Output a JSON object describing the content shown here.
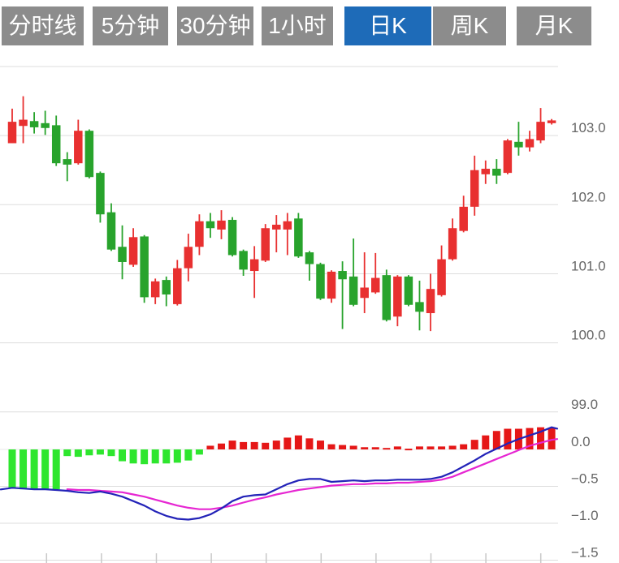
{
  "tabs": {
    "items": [
      {
        "label": "分时线",
        "active": false
      },
      {
        "label": "5分钟",
        "active": false
      },
      {
        "label": "30分钟",
        "active": false
      },
      {
        "label": "1小时",
        "active": false
      },
      {
        "label": "日K",
        "active": true
      },
      {
        "label": "周K",
        "active": false
      },
      {
        "label": "月K",
        "active": false
      }
    ]
  },
  "colors": {
    "bg": "#FFFFFF",
    "tab_bg": "#8C8C8C",
    "tab_active_bg": "#1E6BB8",
    "tab_text": "#FFFFFF",
    "candle_up": "#E83030",
    "candle_down": "#28A32C",
    "hist_pos": "#E51717",
    "hist_neg": "#2EE62E",
    "dif_line": "#2323B8",
    "dea_line": "#E626D2",
    "grid": "#DDDDDD",
    "tick": "#C8C8C8",
    "axis_text": "#666666"
  },
  "chart_data": {
    "type": "candlestick",
    "title": "",
    "panels": [
      "price",
      "macd"
    ],
    "price_axis": {
      "range": [
        99,
        104
      ],
      "unlabeled_top_gridline_value": 104,
      "ticks": [
        {
          "label": "103.0",
          "value": 103
        },
        {
          "label": "102.0",
          "value": 102
        },
        {
          "label": "101.0",
          "value": 101
        },
        {
          "label": "100.0",
          "value": 100
        },
        {
          "label": "99.0",
          "value": 99
        }
      ]
    },
    "candles": {
      "columns": [
        "open",
        "high",
        "low",
        "close"
      ],
      "up_means": "close >= open (red)",
      "ohlc": [
        [
          102.89,
          103.39,
          102.89,
          103.2
        ],
        [
          103.14,
          103.57,
          102.89,
          103.23
        ],
        [
          103.21,
          103.34,
          103.03,
          103.12
        ],
        [
          103.18,
          103.36,
          103.01,
          103.11
        ],
        [
          103.15,
          103.29,
          102.56,
          102.6
        ],
        [
          102.66,
          102.76,
          102.34,
          102.58
        ],
        [
          102.6,
          103.23,
          102.58,
          103.07
        ],
        [
          103.07,
          103.09,
          102.38,
          102.4
        ],
        [
          102.46,
          102.48,
          101.74,
          101.86
        ],
        [
          101.89,
          102.02,
          101.33,
          101.35
        ],
        [
          101.39,
          101.7,
          100.92,
          101.17
        ],
        [
          101.13,
          101.66,
          101.1,
          101.53
        ],
        [
          101.54,
          101.56,
          100.58,
          100.66
        ],
        [
          100.66,
          100.93,
          100.56,
          100.89
        ],
        [
          100.91,
          100.96,
          100.53,
          100.7
        ],
        [
          100.56,
          101.2,
          100.54,
          101.08
        ],
        [
          101.08,
          101.58,
          100.89,
          101.39
        ],
        [
          101.39,
          101.86,
          101.27,
          101.76
        ],
        [
          101.76,
          101.88,
          101.52,
          101.66
        ],
        [
          101.64,
          101.92,
          101.5,
          101.77
        ],
        [
          101.78,
          101.82,
          101.25,
          101.27
        ],
        [
          101.33,
          101.35,
          100.97,
          101.06
        ],
        [
          101.04,
          101.4,
          100.65,
          101.21
        ],
        [
          101.19,
          101.72,
          101.17,
          101.66
        ],
        [
          101.64,
          101.85,
          101.31,
          101.71
        ],
        [
          101.64,
          101.88,
          101.27,
          101.76
        ],
        [
          101.8,
          101.88,
          101.23,
          101.25
        ],
        [
          101.31,
          101.33,
          100.9,
          101.14
        ],
        [
          101.14,
          101.16,
          100.62,
          100.64
        ],
        [
          100.64,
          101.05,
          100.58,
          101.03
        ],
        [
          101.04,
          101.18,
          100.2,
          100.92
        ],
        [
          100.96,
          101.51,
          100.53,
          100.55
        ],
        [
          100.65,
          101.31,
          100.43,
          100.8
        ],
        [
          100.73,
          101.3,
          100.71,
          100.94
        ],
        [
          100.98,
          101.06,
          100.31,
          100.33
        ],
        [
          100.38,
          100.98,
          100.24,
          100.96
        ],
        [
          100.96,
          100.98,
          100.53,
          100.55
        ],
        [
          100.59,
          100.9,
          100.18,
          100.45
        ],
        [
          100.43,
          101.0,
          100.17,
          100.78
        ],
        [
          100.69,
          101.41,
          100.67,
          101.21
        ],
        [
          101.21,
          101.8,
          101.19,
          101.66
        ],
        [
          101.62,
          102.13,
          101.6,
          101.97
        ],
        [
          101.97,
          102.71,
          101.84,
          102.5
        ],
        [
          102.44,
          102.64,
          102.3,
          102.52
        ],
        [
          102.52,
          102.66,
          102.3,
          102.42
        ],
        [
          102.46,
          102.95,
          102.44,
          102.93
        ],
        [
          102.91,
          103.2,
          102.71,
          102.83
        ],
        [
          102.83,
          103.07,
          102.77,
          102.95
        ],
        [
          102.93,
          103.4,
          102.89,
          103.2
        ],
        [
          103.18,
          103.24,
          103.16,
          103.22
        ]
      ]
    },
    "macd": {
      "axis": {
        "range": [
          -1.5,
          0.5
        ],
        "ticks": [
          {
            "label": "0.0",
            "value": 0
          },
          {
            "label": "−0.5",
            "value": -0.5
          },
          {
            "label": "−1.0",
            "value": -1.0
          },
          {
            "label": "−1.5",
            "value": -1.5
          }
        ]
      },
      "histogram": [
        -0.53,
        -0.54,
        -0.54,
        -0.54,
        -0.54,
        -0.09,
        -0.1,
        -0.08,
        -0.07,
        -0.09,
        -0.16,
        -0.19,
        -0.2,
        -0.19,
        -0.19,
        -0.18,
        -0.15,
        -0.07,
        0.05,
        0.08,
        0.12,
        0.1,
        0.1,
        0.09,
        0.12,
        0.16,
        0.19,
        0.15,
        0.12,
        0.07,
        0.06,
        0.05,
        0.03,
        0.03,
        0.02,
        0.04,
        0.01,
        0.04,
        0.04,
        0.04,
        0.05,
        0.07,
        0.13,
        0.19,
        0.25,
        0.28,
        0.28,
        0.29,
        0.3,
        0.29
      ],
      "dif": [
        -0.52,
        -0.53,
        -0.54,
        -0.54,
        -0.55,
        -0.56,
        -0.58,
        -0.59,
        -0.57,
        -0.6,
        -0.64,
        -0.7,
        -0.76,
        -0.84,
        -0.9,
        -0.94,
        -0.95,
        -0.93,
        -0.88,
        -0.8,
        -0.7,
        -0.64,
        -0.62,
        -0.61,
        -0.54,
        -0.47,
        -0.42,
        -0.4,
        -0.4,
        -0.44,
        -0.43,
        -0.42,
        -0.43,
        -0.42,
        -0.42,
        -0.41,
        -0.41,
        -0.41,
        -0.4,
        -0.37,
        -0.31,
        -0.23,
        -0.15,
        -0.06,
        0.01,
        0.08,
        0.14,
        0.19,
        0.24,
        0.3
      ],
      "dea": [
        null,
        null,
        null,
        null,
        null,
        -0.54,
        -0.55,
        -0.55,
        -0.56,
        -0.57,
        -0.58,
        -0.61,
        -0.64,
        -0.68,
        -0.72,
        -0.76,
        -0.79,
        -0.81,
        -0.81,
        -0.79,
        -0.76,
        -0.72,
        -0.68,
        -0.65,
        -0.61,
        -0.58,
        -0.55,
        -0.53,
        -0.51,
        -0.49,
        -0.48,
        -0.47,
        -0.47,
        -0.46,
        -0.46,
        -0.45,
        -0.45,
        -0.44,
        -0.43,
        -0.41,
        -0.37,
        -0.31,
        -0.25,
        -0.19,
        -0.13,
        -0.07,
        -0.01,
        0.05,
        0.09,
        0.13
      ]
    },
    "x_axis": {
      "tick_count": 10,
      "labels_visible": false
    },
    "legend_position": "none",
    "grid": true
  }
}
